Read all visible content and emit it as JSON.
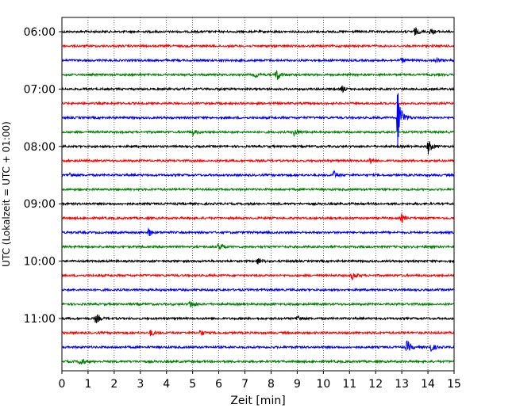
{
  "chart_data": {
    "type": "line",
    "title": "",
    "xlabel": "Zeit  [min]",
    "ylabel": "UTC (Lokalzeit = UTC + 01:00)",
    "xlim": [
      0,
      15
    ],
    "xticks": [
      0,
      1,
      2,
      3,
      4,
      5,
      6,
      7,
      8,
      9,
      10,
      11,
      12,
      13,
      14,
      15
    ],
    "row_minutes": 15,
    "grid": "vertical dotted",
    "yticks": [
      "06:00",
      "07:00",
      "08:00",
      "09:00",
      "10:00",
      "11:00"
    ],
    "colors": [
      "#000000",
      "#ff0000",
      "#0000ff",
      "#008000"
    ],
    "series": [
      {
        "start": "06:00",
        "color": "#000000",
        "events": [
          {
            "t": 13.5,
            "amp": 5
          },
          {
            "t": 14.1,
            "amp": 4
          }
        ]
      },
      {
        "start": "06:15",
        "color": "#ff0000",
        "events": []
      },
      {
        "start": "06:30",
        "color": "#0000ff",
        "events": [
          {
            "t": 13.0,
            "amp": 3
          },
          {
            "t": 14.3,
            "amp": 3
          }
        ]
      },
      {
        "start": "06:45",
        "color": "#008000",
        "events": [
          {
            "t": 8.2,
            "amp": 9
          },
          {
            "t": 7.4,
            "amp": 3
          }
        ]
      },
      {
        "start": "07:00",
        "color": "#000000",
        "events": [
          {
            "t": 10.7,
            "amp": 4
          }
        ]
      },
      {
        "start": "07:15",
        "color": "#ff0000",
        "events": []
      },
      {
        "start": "07:30",
        "color": "#0000ff",
        "events": [
          {
            "t": 12.85,
            "amp": 40
          }
        ]
      },
      {
        "start": "07:45",
        "color": "#008000",
        "events": [
          {
            "t": 5.0,
            "amp": 4
          },
          {
            "t": 8.9,
            "amp": 6
          }
        ]
      },
      {
        "start": "08:00",
        "color": "#000000",
        "events": [
          {
            "t": 14.0,
            "amp": 10
          }
        ]
      },
      {
        "start": "08:15",
        "color": "#ff0000",
        "events": [
          {
            "t": 11.8,
            "amp": 4
          }
        ]
      },
      {
        "start": "08:30",
        "color": "#0000ff",
        "events": [
          {
            "t": 10.4,
            "amp": 5
          },
          {
            "t": 0.3,
            "amp": 3
          }
        ]
      },
      {
        "start": "08:45",
        "color": "#008000",
        "events": []
      },
      {
        "start": "09:00",
        "color": "#000000",
        "events": []
      },
      {
        "start": "09:15",
        "color": "#ff0000",
        "events": [
          {
            "t": 13.0,
            "amp": 5
          }
        ]
      },
      {
        "start": "09:30",
        "color": "#0000ff",
        "events": [
          {
            "t": 3.3,
            "amp": 6
          }
        ]
      },
      {
        "start": "09:45",
        "color": "#008000",
        "events": [
          {
            "t": 6.0,
            "amp": 6
          }
        ]
      },
      {
        "start": "10:00",
        "color": "#000000",
        "events": [
          {
            "t": 7.5,
            "amp": 4
          }
        ]
      },
      {
        "start": "10:15",
        "color": "#ff0000",
        "events": [
          {
            "t": 11.1,
            "amp": 5
          }
        ]
      },
      {
        "start": "10:30",
        "color": "#0000ff",
        "events": []
      },
      {
        "start": "10:45",
        "color": "#008000",
        "events": [
          {
            "t": 4.9,
            "amp": 5
          }
        ]
      },
      {
        "start": "11:00",
        "color": "#000000",
        "events": [
          {
            "t": 1.3,
            "amp": 6
          },
          {
            "t": 9.0,
            "amp": 5
          }
        ]
      },
      {
        "start": "11:15",
        "color": "#ff0000",
        "events": [
          {
            "t": 3.4,
            "amp": 4
          },
          {
            "t": 5.3,
            "amp": 4
          }
        ]
      },
      {
        "start": "11:30",
        "color": "#0000ff",
        "events": [
          {
            "t": 13.2,
            "amp": 8
          },
          {
            "t": 14.1,
            "amp": 6
          }
        ]
      },
      {
        "start": "11:45",
        "color": "#008000",
        "events": [
          {
            "t": 0.7,
            "amp": 6
          }
        ]
      }
    ]
  }
}
